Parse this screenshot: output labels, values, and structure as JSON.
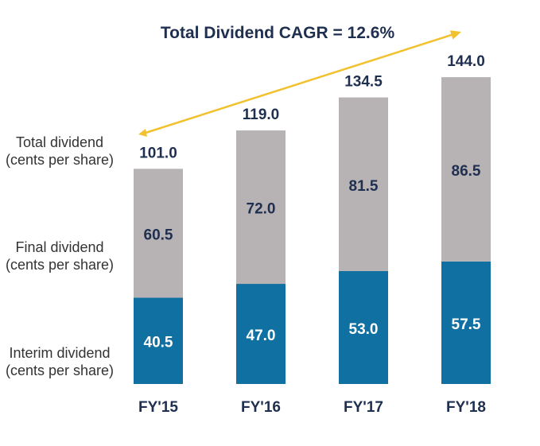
{
  "chart_data": {
    "type": "bar",
    "stacked": true,
    "title": "Total Dividend CAGR = 12.6%",
    "categories": [
      "FY'15",
      "FY'16",
      "FY'17",
      "FY'18"
    ],
    "series": [
      {
        "name": "Interim dividend (cents per share)",
        "values": [
          40.5,
          47.0,
          53.0,
          57.5
        ],
        "color": "#1170A2"
      },
      {
        "name": "Final dividend (cents per share)",
        "values": [
          60.5,
          72.0,
          81.5,
          86.5
        ],
        "color": "#B7B3B4"
      }
    ],
    "totals": {
      "name": "Total dividend (cents per share)",
      "values": [
        101.0,
        119.0,
        134.5,
        144.0
      ]
    },
    "ylim": [
      0,
      144
    ],
    "grid": false,
    "legend_position": "left",
    "arrow_color": "#F2C12E",
    "label_color": "#1F2F50",
    "interim_label_color": "#ffffff"
  }
}
